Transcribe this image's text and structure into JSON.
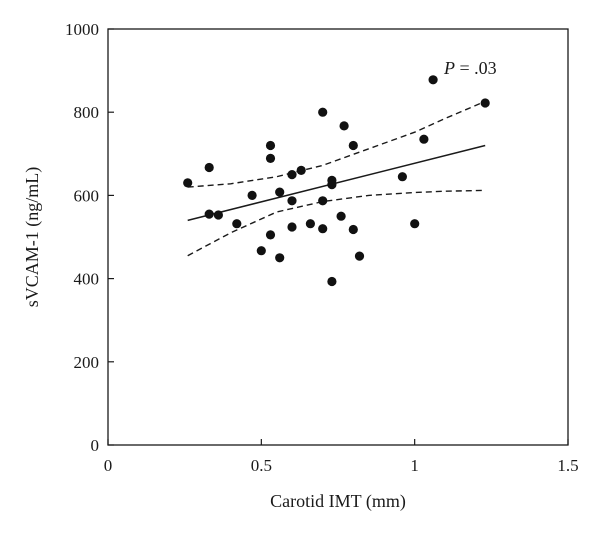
{
  "chart_data": {
    "type": "scatter",
    "xlabel": "Carotid IMT (mm)",
    "ylabel": "sVCAM-1 (ng/mL)",
    "xlim": [
      0,
      1.5
    ],
    "ylim": [
      0,
      1000
    ],
    "x_ticks": [
      0,
      0.5,
      1,
      1.5
    ],
    "x_tick_labels": [
      "0",
      "0.5",
      "1",
      "1.5"
    ],
    "y_ticks": [
      0,
      200,
      400,
      600,
      800,
      1000
    ],
    "y_tick_labels": [
      "0",
      "200",
      "400",
      "600",
      "800",
      "1000"
    ],
    "grid": false,
    "annotation": {
      "italic": "P",
      "rest": " = .03"
    },
    "points": [
      {
        "x": 0.26,
        "y": 630
      },
      {
        "x": 0.33,
        "y": 667
      },
      {
        "x": 0.33,
        "y": 555
      },
      {
        "x": 0.36,
        "y": 553
      },
      {
        "x": 0.42,
        "y": 532
      },
      {
        "x": 0.47,
        "y": 600
      },
      {
        "x": 0.5,
        "y": 467
      },
      {
        "x": 0.53,
        "y": 720
      },
      {
        "x": 0.53,
        "y": 689
      },
      {
        "x": 0.53,
        "y": 505
      },
      {
        "x": 0.56,
        "y": 608
      },
      {
        "x": 0.56,
        "y": 450
      },
      {
        "x": 0.6,
        "y": 650
      },
      {
        "x": 0.6,
        "y": 587
      },
      {
        "x": 0.6,
        "y": 524
      },
      {
        "x": 0.63,
        "y": 660
      },
      {
        "x": 0.66,
        "y": 532
      },
      {
        "x": 0.7,
        "y": 800
      },
      {
        "x": 0.7,
        "y": 587
      },
      {
        "x": 0.7,
        "y": 520
      },
      {
        "x": 0.73,
        "y": 636
      },
      {
        "x": 0.73,
        "y": 626
      },
      {
        "x": 0.73,
        "y": 393
      },
      {
        "x": 0.76,
        "y": 550
      },
      {
        "x": 0.77,
        "y": 767
      },
      {
        "x": 0.8,
        "y": 720
      },
      {
        "x": 0.8,
        "y": 518
      },
      {
        "x": 0.82,
        "y": 454
      },
      {
        "x": 0.96,
        "y": 645
      },
      {
        "x": 1.0,
        "y": 532
      },
      {
        "x": 1.03,
        "y": 735
      },
      {
        "x": 1.06,
        "y": 878
      },
      {
        "x": 1.23,
        "y": 822
      }
    ],
    "fit_line": {
      "x": [
        0.26,
        1.23
      ],
      "y": [
        540,
        720
      ]
    },
    "ci_upper": {
      "x": [
        0.26,
        0.4,
        0.55,
        0.7,
        0.85,
        1.0,
        1.1,
        1.23
      ],
      "y": [
        620,
        628,
        645,
        672,
        712,
        752,
        785,
        826
      ]
    },
    "ci_lower": {
      "x": [
        0.26,
        0.4,
        0.55,
        0.7,
        0.85,
        1.0,
        1.1,
        1.23
      ],
      "y": [
        455,
        510,
        560,
        585,
        600,
        607,
        610,
        612
      ]
    }
  }
}
